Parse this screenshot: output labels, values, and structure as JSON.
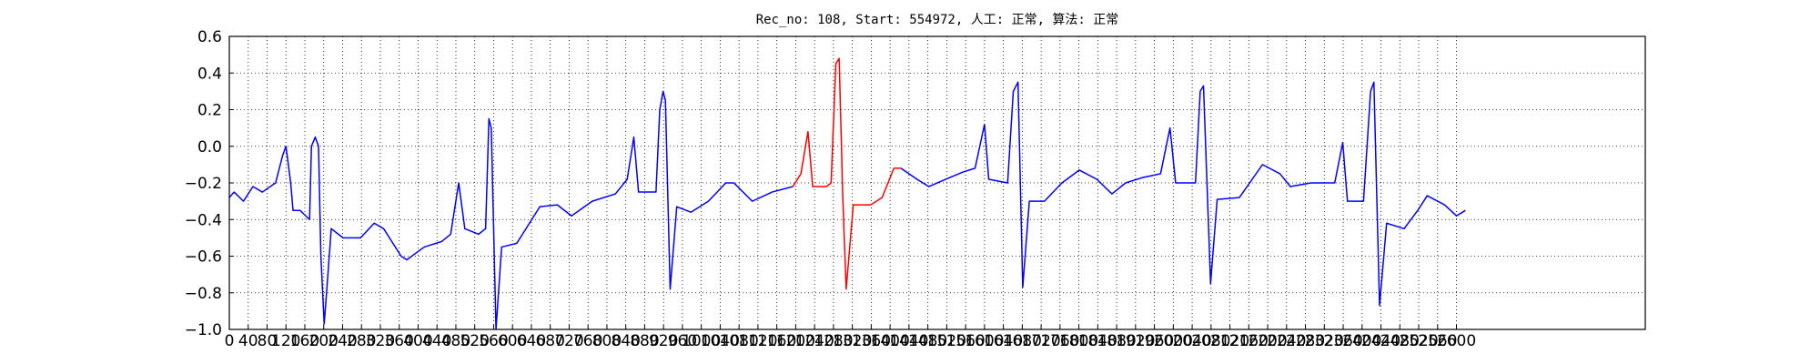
{
  "chart_data": {
    "type": "line",
    "title": "Rec_no: 108, Start: 554972, 人工: 正常, 算法: 正常",
    "x": [
      0,
      10,
      30,
      50,
      70,
      98,
      113,
      120,
      130,
      135,
      150,
      162,
      170,
      174,
      182,
      189,
      194,
      201,
      206,
      216,
      241,
      278,
      307,
      327,
      364,
      376,
      413,
      450,
      469,
      486,
      499,
      528,
      543,
      550,
      555,
      565,
      577,
      609,
      658,
      695,
      725,
      769,
      818,
      843,
      857,
      867,
      904,
      912,
      919,
      924,
      934,
      948,
      978,
      1015,
      1052,
      1069,
      1108,
      1150,
      1194,
      1211,
      1226,
      1236,
      1265,
      1275,
      1285,
      1292,
      1300,
      1307,
      1322,
      1359,
      1383,
      1408,
      1423,
      1457,
      1482,
      1518,
      1555,
      1580,
      1600,
      1609,
      1649,
      1661,
      1671,
      1681,
      1695,
      1727,
      1764,
      1801,
      1838,
      1870,
      1899,
      1936,
      1973,
      1993,
      2005,
      2047,
      2057,
      2064,
      2079,
      2093,
      2140,
      2189,
      2226,
      2248,
      2292,
      2342,
      2359,
      2369,
      2403,
      2418,
      2425,
      2437,
      2452,
      2489,
      2518,
      2538,
      2575,
      2600,
      2619
    ],
    "series": [
      {
        "color": "#0000ff",
        "values": [
          -0.28,
          -0.25,
          -0.3,
          -0.22,
          -0.25,
          -0.2,
          -0.05,
          0.0,
          -0.2,
          -0.35,
          -0.35,
          -0.38,
          -0.4,
          0.0,
          0.05,
          0.0,
          -0.6,
          -0.97,
          -0.8,
          -0.45,
          -0.5,
          -0.5,
          -0.42,
          -0.45,
          -0.6,
          -0.62,
          -0.55,
          -0.52,
          -0.48,
          -0.2,
          -0.45,
          -0.48,
          -0.45,
          0.15,
          0.1,
          -1.0,
          -0.55,
          -0.53,
          -0.33,
          -0.32,
          -0.38,
          -0.3,
          -0.26,
          -0.18,
          0.05,
          -0.25,
          -0.25,
          0.2,
          0.3,
          0.25,
          -0.78,
          -0.33,
          -0.36,
          -0.3,
          -0.2,
          -0.2,
          -0.3,
          -0.25,
          -0.22,
          null,
          null,
          null,
          null,
          null,
          null,
          null,
          null,
          null,
          null,
          null,
          null,
          null,
          -0.12,
          -0.18,
          -0.22,
          -0.18,
          -0.14,
          -0.12,
          0.12,
          -0.18,
          -0.2,
          0.3,
          0.35,
          -0.77,
          -0.3,
          -0.3,
          -0.2,
          -0.13,
          -0.18,
          -0.26,
          -0.2,
          -0.17,
          -0.15,
          0.1,
          -0.2,
          -0.2,
          0.3,
          0.33,
          -0.75,
          -0.29,
          -0.28,
          -0.1,
          -0.15,
          -0.22,
          -0.2,
          -0.2,
          0.02,
          -0.3,
          -0.3,
          0.3,
          0.35,
          -0.87,
          -0.42,
          -0.45,
          -0.35,
          -0.27,
          -0.32,
          -0.38,
          -0.35
        ]
      },
      {
        "color": "#ff0000",
        "values": [
          null,
          null,
          null,
          null,
          null,
          null,
          null,
          null,
          null,
          null,
          null,
          null,
          null,
          null,
          null,
          null,
          null,
          null,
          null,
          null,
          null,
          null,
          null,
          null,
          null,
          null,
          null,
          null,
          null,
          null,
          null,
          null,
          null,
          null,
          null,
          null,
          null,
          null,
          null,
          null,
          null,
          null,
          null,
          null,
          null,
          null,
          null,
          null,
          null,
          null,
          null,
          null,
          null,
          null,
          null,
          null,
          null,
          null,
          -0.22,
          -0.15,
          0.08,
          -0.22,
          -0.22,
          -0.2,
          0.45,
          0.48,
          -0.3,
          -0.78,
          -0.32,
          -0.32,
          -0.28,
          -0.12,
          -0.12,
          null,
          null,
          null,
          null,
          null,
          null,
          null,
          null,
          null,
          null,
          null,
          null,
          null,
          null,
          null,
          null,
          null,
          null,
          null,
          null,
          null,
          null,
          null,
          null,
          null,
          null,
          null,
          null,
          null,
          null,
          null,
          null,
          null,
          null,
          null,
          null,
          null,
          null,
          null,
          null,
          null,
          null,
          null,
          null,
          null,
          null
        ]
      }
    ],
    "xlim": [
      0,
      3000
    ],
    "xticks": [
      0,
      40,
      80,
      120,
      160,
      200,
      240,
      280,
      320,
      360,
      400,
      440,
      480,
      520,
      560,
      600,
      640,
      680,
      720,
      760,
      800,
      840,
      880,
      920,
      960,
      1000,
      1040,
      1080,
      1120,
      1160,
      1200,
      1240,
      1280,
      1320,
      1360,
      1400,
      1440,
      1480,
      1520,
      1560,
      1600,
      1640,
      1680,
      1720,
      1760,
      1800,
      1840,
      1880,
      1920,
      1960,
      2000,
      2040,
      2080,
      2120,
      2160,
      2200,
      2240,
      2280,
      2320,
      2360,
      2400,
      2440,
      2480,
      2520,
      2560,
      2600
    ],
    "ylim": [
      -1.0,
      0.6
    ],
    "yticks": [
      {
        "value": -1.0,
        "label": "−1.0"
      },
      {
        "value": -0.8,
        "label": "−0.8"
      },
      {
        "value": -0.6,
        "label": "−0.6"
      },
      {
        "value": -0.4,
        "label": "−0.4"
      },
      {
        "value": -0.2,
        "label": "−0.2"
      },
      {
        "value": 0.0,
        "label": "0.0"
      },
      0.2,
      0.4,
      0.6
    ],
    "grid": true
  }
}
